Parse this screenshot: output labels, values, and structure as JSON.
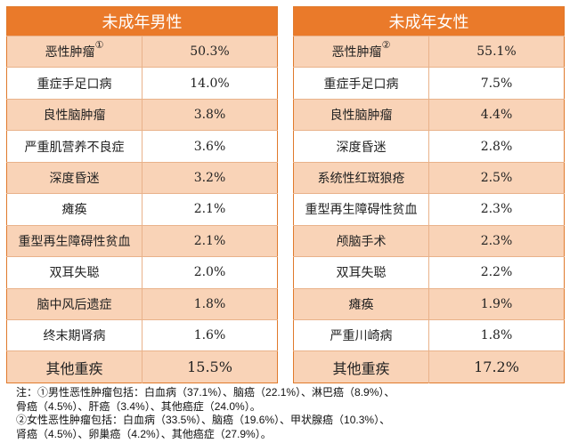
{
  "left": {
    "title": "未成年男性",
    "rows": [
      {
        "name": "恶性肿瘤",
        "mark": "①",
        "value": "50.3%"
      },
      {
        "name": "重症手足口病",
        "value": "14.0%"
      },
      {
        "name": "良性脑肿瘤",
        "value": "3.8%"
      },
      {
        "name": "严重肌营养不良症",
        "value": "3.6%"
      },
      {
        "name": "深度昏迷",
        "value": "3.2%"
      },
      {
        "name": "瘫痪",
        "value": "2.1%"
      },
      {
        "name": "重型再生障碍性贫血",
        "value": "2.1%"
      },
      {
        "name": "双耳失聪",
        "value": "2.0%"
      },
      {
        "name": "脑中风后遗症",
        "value": "1.8%"
      },
      {
        "name": "终末期肾病",
        "value": "1.6%"
      },
      {
        "name": "其他重疾",
        "value": "15.5%"
      }
    ]
  },
  "right": {
    "title": "未成年女性",
    "rows": [
      {
        "name": "恶性肿瘤",
        "mark": "②",
        "value": "55.1%"
      },
      {
        "name": "重症手足口病",
        "value": "7.5%"
      },
      {
        "name": "良性脑肿瘤",
        "value": "4.4%"
      },
      {
        "name": "深度昏迷",
        "value": "2.8%"
      },
      {
        "name": "系统性红斑狼疮",
        "value": "2.5%"
      },
      {
        "name": "重型再生障碍性贫血",
        "value": "2.3%"
      },
      {
        "name": "颅脑手术",
        "value": "2.3%"
      },
      {
        "name": "双耳失聪",
        "value": "2.2%"
      },
      {
        "name": "瘫痪",
        "value": "1.9%"
      },
      {
        "name": "严重川崎病",
        "value": "1.8%"
      },
      {
        "name": "其他重疾",
        "value": "17.2%"
      }
    ]
  },
  "notes": [
    "注：①男性恶性肿瘤包括：白血病（37.1%）、脑癌（22.1%）、淋巴癌（8.9%）、",
    "骨癌（4.5%）、肝癌（3.4%）、其他癌症（24.0%）。",
    "②女性恶性肿瘤包括：白血病（33.5%）、脑癌（19.6%）、甲状腺癌（10.3%）、",
    "肾癌（4.5%）、卵巢癌（4.2%）、其他癌症（27.9%）。"
  ]
}
